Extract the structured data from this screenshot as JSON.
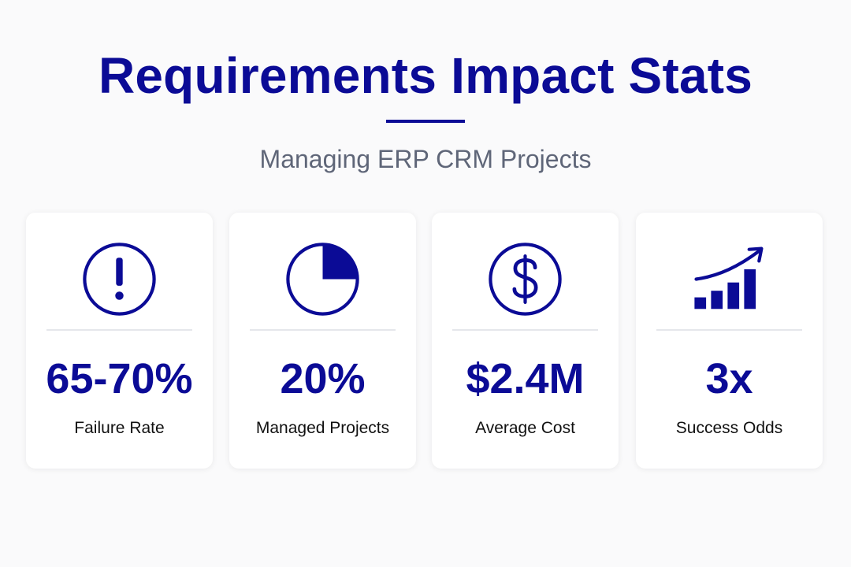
{
  "header": {
    "title": "Requirements Impact Stats",
    "subtitle": "Managing ERP CRM Projects"
  },
  "colors": {
    "accent": "#0b0b96",
    "subtitle": "#5f6678",
    "divider": "#e5e7eb",
    "background": "#fafafb",
    "card": "#ffffff"
  },
  "stats": [
    {
      "icon": "exclamation-circle-icon",
      "value": "65-70%",
      "label": "Failure Rate"
    },
    {
      "icon": "pie-quarter-icon",
      "value": "20%",
      "label": "Managed Projects",
      "pie_fraction": 0.25
    },
    {
      "icon": "dollar-circle-icon",
      "value": "$2.4M",
      "label": "Average Cost"
    },
    {
      "icon": "rising-bar-chart-icon",
      "value": "3x",
      "label": "Success Odds"
    }
  ]
}
